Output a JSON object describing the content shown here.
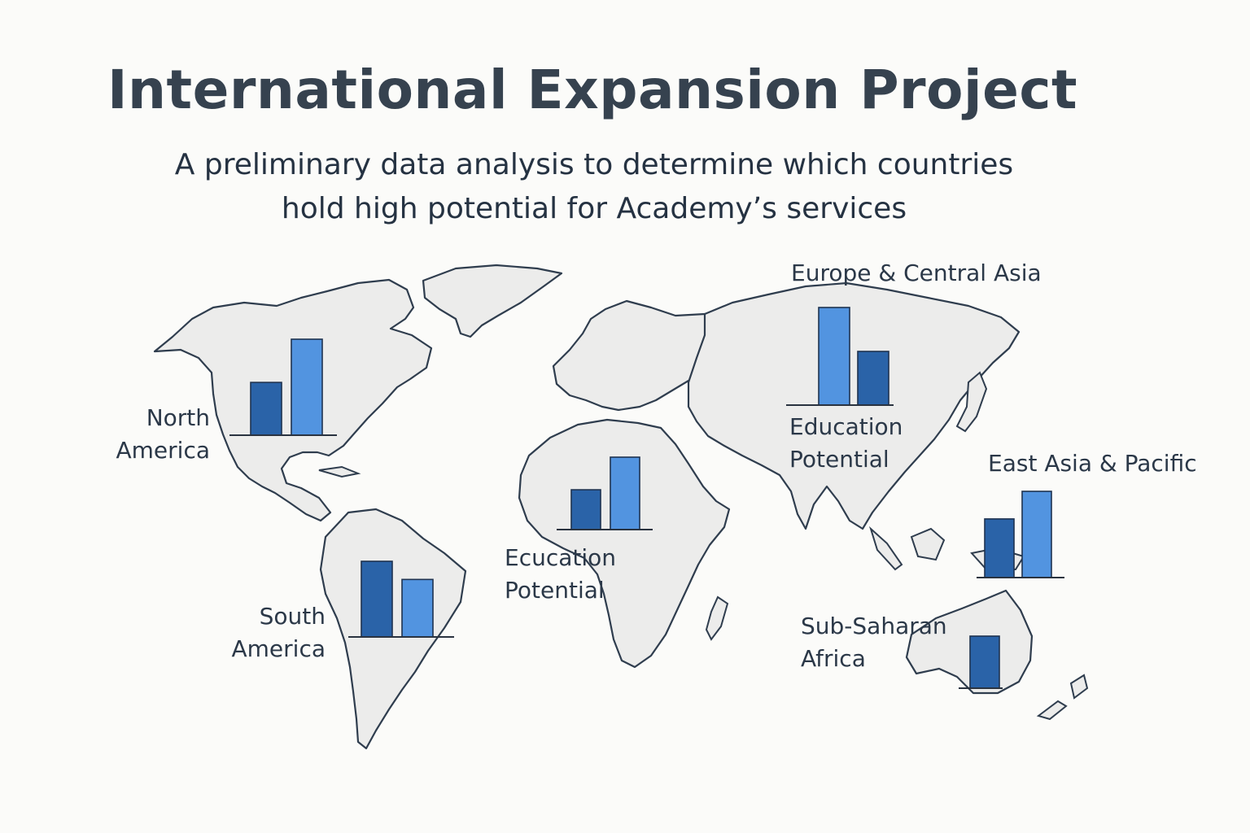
{
  "title": "International Expansion Project",
  "subtitle_lines": [
    "A preliminary data analysis to determine which countries",
    "hold high potential for Academy’s services"
  ],
  "colors": {
    "dark_bar": "#2a63a8",
    "light_bar": "#5294e0",
    "land": "#ececeb",
    "outline": "#2f3d4e"
  },
  "labels": {
    "north_america": [
      "North",
      "America"
    ],
    "south_america": [
      "South",
      "America"
    ],
    "africa_potential": [
      "Ecucation",
      "Potential"
    ],
    "europe_central_asia": "Europe & Central Asia",
    "europe_potential": [
      "Education",
      "Potential"
    ],
    "east_asia_pacific": "East Asia & Pacific",
    "sub_saharan_africa": [
      "Sub-Saharan",
      "Africa"
    ]
  },
  "chart_data": [
    {
      "type": "bar",
      "region": "North America",
      "values": [
        0.55,
        1.0
      ],
      "bar_colors": [
        "dark",
        "light"
      ]
    },
    {
      "type": "bar",
      "region": "South America",
      "values": [
        1.0,
        0.76
      ],
      "bar_colors": [
        "dark",
        "light"
      ]
    },
    {
      "type": "bar",
      "region": "Africa",
      "values": [
        0.55,
        1.0
      ],
      "bar_colors": [
        "dark",
        "light"
      ]
    },
    {
      "type": "bar",
      "region": "Europe & Central Asia",
      "values": [
        1.0,
        0.55
      ],
      "bar_colors": [
        "light",
        "dark"
      ]
    },
    {
      "type": "bar",
      "region": "East Asia & Pacific",
      "values": [
        0.68,
        1.0
      ],
      "bar_colors": [
        "dark",
        "light"
      ]
    },
    {
      "type": "bar",
      "region": "Sub-Saharan Africa",
      "values": [
        1.0
      ],
      "bar_colors": [
        "dark"
      ]
    }
  ]
}
